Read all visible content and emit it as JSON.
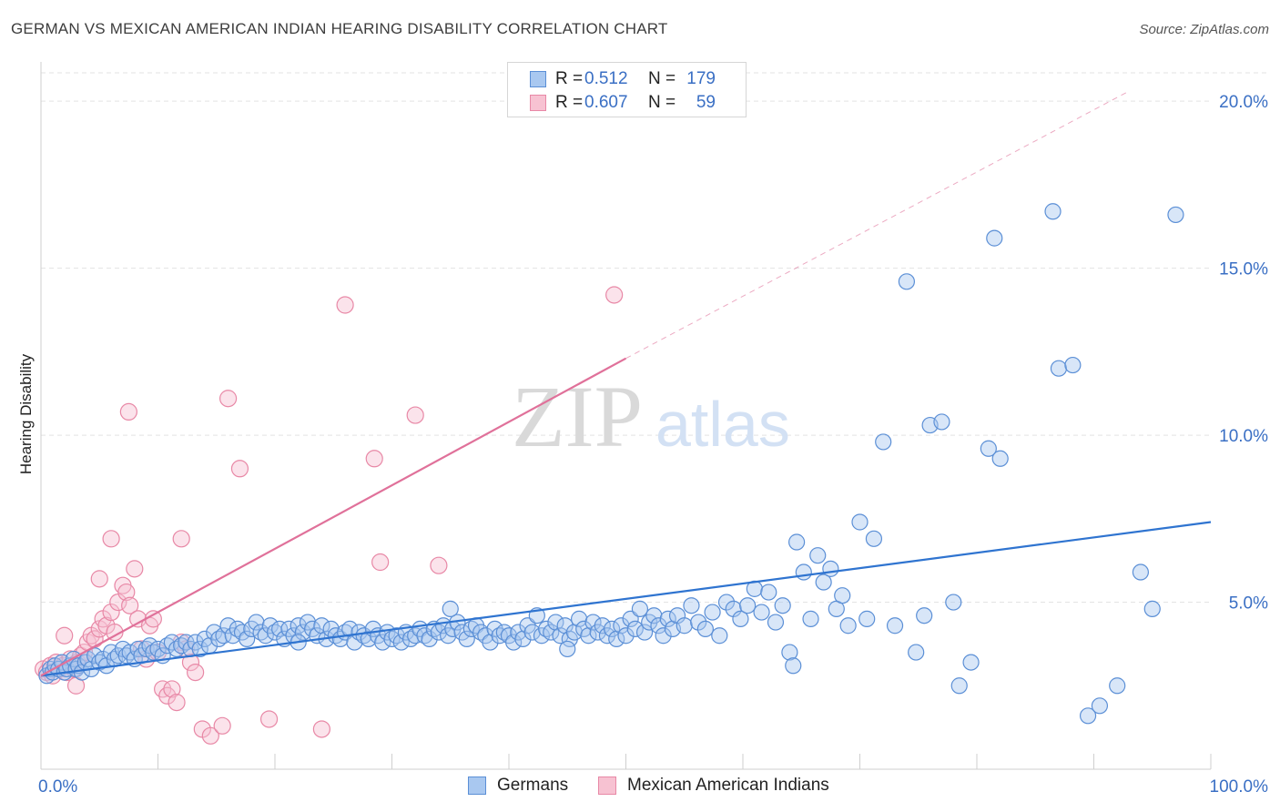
{
  "title": "GERMAN VS MEXICAN AMERICAN INDIAN HEARING DISABILITY CORRELATION CHART",
  "source": "Source: ZipAtlas.com",
  "watermark": {
    "zip": "ZIP",
    "atlas": "atlas"
  },
  "legend_top": {
    "rows": [
      {
        "r_label": "R =",
        "r_value": "0.512",
        "n_label": "N =",
        "n_value": "179",
        "color": "#a9c8f0",
        "border": "#5b8fd6"
      },
      {
        "r_label": "R =",
        "r_value": "0.607",
        "n_label": "N =",
        "n_value": "59",
        "color": "#f7c2d2",
        "border": "#e888a6"
      }
    ]
  },
  "legend_bottom": {
    "items": [
      {
        "label": "Germans",
        "color": "#a9c8f0",
        "border": "#5b8fd6"
      },
      {
        "label": "Mexican American Indians",
        "color": "#f7c2d2",
        "border": "#e888a6"
      }
    ]
  },
  "chart_data": {
    "type": "scatter",
    "title": "GERMAN VS MEXICAN AMERICAN INDIAN HEARING DISABILITY CORRELATION CHART",
    "xlabel": "",
    "ylabel": "Hearing Disability",
    "xlim": [
      0,
      100
    ],
    "ylim": [
      0,
      20
    ],
    "x_tick_labels": [
      "0.0%",
      "100.0%"
    ],
    "y_tick_labels": [
      "5.0%",
      "10.0%",
      "15.0%",
      "20.0%"
    ],
    "y_ticks": [
      5,
      10,
      15,
      20
    ],
    "x_minor_ticks": [
      0,
      10,
      20,
      30,
      40,
      50,
      60,
      70,
      80,
      90,
      100
    ],
    "grid": true,
    "legend_position": "bottom-center",
    "colors": {
      "germans": "#5b8fd6",
      "mexican": "#e888a6",
      "blue_line": "#2f74d0",
      "pink_line": "#e0719a",
      "tick_label": "#3a6fc4"
    },
    "trendlines": [
      {
        "series": "Germans",
        "x": [
          0,
          100
        ],
        "y": [
          2.8,
          7.4
        ],
        "style": "solid"
      },
      {
        "series": "Mexican American Indians",
        "x": [
          0,
          50
        ],
        "y": [
          2.8,
          12.3
        ],
        "style": "solid"
      },
      {
        "series": "Mexican American Indians",
        "x": [
          50,
          93
        ],
        "y": [
          12.3,
          20.3
        ],
        "style": "dashed"
      }
    ],
    "series": [
      {
        "name": "Germans",
        "r": 0.512,
        "n": 179,
        "points": [
          [
            0.5,
            2.8
          ],
          [
            0.8,
            3.0
          ],
          [
            1.0,
            2.9
          ],
          [
            1.2,
            3.1
          ],
          [
            1.5,
            3.0
          ],
          [
            1.8,
            3.2
          ],
          [
            2.0,
            2.9
          ],
          [
            2.2,
            3.0
          ],
          [
            2.5,
            3.1
          ],
          [
            2.8,
            3.3
          ],
          [
            3.0,
            3.0
          ],
          [
            3.2,
            3.1
          ],
          [
            3.5,
            2.9
          ],
          [
            3.8,
            3.2
          ],
          [
            4.0,
            3.3
          ],
          [
            4.3,
            3.0
          ],
          [
            4.6,
            3.4
          ],
          [
            5.0,
            3.2
          ],
          [
            5.3,
            3.3
          ],
          [
            5.6,
            3.1
          ],
          [
            6.0,
            3.5
          ],
          [
            6.3,
            3.3
          ],
          [
            6.6,
            3.4
          ],
          [
            7.0,
            3.6
          ],
          [
            7.3,
            3.4
          ],
          [
            7.6,
            3.5
          ],
          [
            8.0,
            3.3
          ],
          [
            8.3,
            3.6
          ],
          [
            8.6,
            3.4
          ],
          [
            9.0,
            3.6
          ],
          [
            9.3,
            3.7
          ],
          [
            9.6,
            3.5
          ],
          [
            10.0,
            3.6
          ],
          [
            10.4,
            3.4
          ],
          [
            10.8,
            3.7
          ],
          [
            11.2,
            3.8
          ],
          [
            11.6,
            3.6
          ],
          [
            12.0,
            3.7
          ],
          [
            12.4,
            3.8
          ],
          [
            12.8,
            3.6
          ],
          [
            13.2,
            3.8
          ],
          [
            13.6,
            3.6
          ],
          [
            14.0,
            3.9
          ],
          [
            14.4,
            3.7
          ],
          [
            14.8,
            4.1
          ],
          [
            15.2,
            3.9
          ],
          [
            15.6,
            4.0
          ],
          [
            16.0,
            4.3
          ],
          [
            16.4,
            4.0
          ],
          [
            16.8,
            4.2
          ],
          [
            17.2,
            4.1
          ],
          [
            17.6,
            3.9
          ],
          [
            18.0,
            4.2
          ],
          [
            18.4,
            4.4
          ],
          [
            18.8,
            4.1
          ],
          [
            19.2,
            4.0
          ],
          [
            19.6,
            4.3
          ],
          [
            20.0,
            4.1
          ],
          [
            20.4,
            4.2
          ],
          [
            20.8,
            3.9
          ],
          [
            21.2,
            4.2
          ],
          [
            21.6,
            4.0
          ],
          [
            22.0,
            4.3
          ],
          [
            22.4,
            4.1
          ],
          [
            22.8,
            4.4
          ],
          [
            23.2,
            4.2
          ],
          [
            23.6,
            4.0
          ],
          [
            24.0,
            4.3
          ],
          [
            24.4,
            3.9
          ],
          [
            24.8,
            4.2
          ],
          [
            25.2,
            4.0
          ],
          [
            25.6,
            3.9
          ],
          [
            26.0,
            4.1
          ],
          [
            26.4,
            4.2
          ],
          [
            26.8,
            3.8
          ],
          [
            27.2,
            4.1
          ],
          [
            27.6,
            4.0
          ],
          [
            28.0,
            3.9
          ],
          [
            28.4,
            4.2
          ],
          [
            28.8,
            4.0
          ],
          [
            29.2,
            3.8
          ],
          [
            29.6,
            4.1
          ],
          [
            30.0,
            3.9
          ],
          [
            30.4,
            4.0
          ],
          [
            30.8,
            3.8
          ],
          [
            31.2,
            4.1
          ],
          [
            31.6,
            3.9
          ],
          [
            32.0,
            4.0
          ],
          [
            32.4,
            4.2
          ],
          [
            32.8,
            4.0
          ],
          [
            33.2,
            3.9
          ],
          [
            33.6,
            4.2
          ],
          [
            34.0,
            4.1
          ],
          [
            34.4,
            4.3
          ],
          [
            34.8,
            4.0
          ],
          [
            35.2,
            4.2
          ],
          [
            35.6,
            4.4
          ],
          [
            36.0,
            4.1
          ],
          [
            36.4,
            3.9
          ],
          [
            36.8,
            4.2
          ],
          [
            37.2,
            4.3
          ],
          [
            37.6,
            4.1
          ],
          [
            38.0,
            4.0
          ],
          [
            38.4,
            3.8
          ],
          [
            38.8,
            4.2
          ],
          [
            39.2,
            4.0
          ],
          [
            39.6,
            4.1
          ],
          [
            40.0,
            4.0
          ],
          [
            40.4,
            3.8
          ],
          [
            40.8,
            4.1
          ],
          [
            41.2,
            3.9
          ],
          [
            41.6,
            4.3
          ],
          [
            42.0,
            4.1
          ],
          [
            42.4,
            4.6
          ],
          [
            42.8,
            4.0
          ],
          [
            43.2,
            4.2
          ],
          [
            43.6,
            4.1
          ],
          [
            44.0,
            4.4
          ],
          [
            44.4,
            4.0
          ],
          [
            44.8,
            4.3
          ],
          [
            45.2,
            3.9
          ],
          [
            45.6,
            4.1
          ],
          [
            46.0,
            4.5
          ],
          [
            46.4,
            4.2
          ],
          [
            46.8,
            4.0
          ],
          [
            47.2,
            4.4
          ],
          [
            47.6,
            4.1
          ],
          [
            48.0,
            4.3
          ],
          [
            48.4,
            4.0
          ],
          [
            48.8,
            4.2
          ],
          [
            49.2,
            3.9
          ],
          [
            49.6,
            4.3
          ],
          [
            50.0,
            4.0
          ],
          [
            50.4,
            4.5
          ],
          [
            50.8,
            4.2
          ],
          [
            51.2,
            4.8
          ],
          [
            51.6,
            4.1
          ],
          [
            52.0,
            4.4
          ],
          [
            52.4,
            4.6
          ],
          [
            52.8,
            4.3
          ],
          [
            53.2,
            4.0
          ],
          [
            53.6,
            4.5
          ],
          [
            54.0,
            4.2
          ],
          [
            54.4,
            4.6
          ],
          [
            55.0,
            4.3
          ],
          [
            55.6,
            4.9
          ],
          [
            56.2,
            4.4
          ],
          [
            56.8,
            4.2
          ],
          [
            57.4,
            4.7
          ],
          [
            58.0,
            4.0
          ],
          [
            58.6,
            5.0
          ],
          [
            59.2,
            4.8
          ],
          [
            59.8,
            4.5
          ],
          [
            60.4,
            4.9
          ],
          [
            61.0,
            5.4
          ],
          [
            61.6,
            4.7
          ],
          [
            62.2,
            5.3
          ],
          [
            62.8,
            4.4
          ],
          [
            63.4,
            4.9
          ],
          [
            64.0,
            3.5
          ],
          [
            64.6,
            6.8
          ],
          [
            65.2,
            5.9
          ],
          [
            65.8,
            4.5
          ],
          [
            66.4,
            6.4
          ],
          [
            66.9,
            5.6
          ],
          [
            67.5,
            6.0
          ],
          [
            68.0,
            4.8
          ],
          [
            68.5,
            5.2
          ],
          [
            69.0,
            4.3
          ],
          [
            70.0,
            7.4
          ],
          [
            70.6,
            4.5
          ],
          [
            71.2,
            6.9
          ],
          [
            72.0,
            9.8
          ],
          [
            73.0,
            4.3
          ],
          [
            74.0,
            14.6
          ],
          [
            74.8,
            3.5
          ],
          [
            75.5,
            4.6
          ],
          [
            76.0,
            10.3
          ],
          [
            77.0,
            10.4
          ],
          [
            78.0,
            5.0
          ],
          [
            78.5,
            2.5
          ],
          [
            79.5,
            3.2
          ],
          [
            81.0,
            9.6
          ],
          [
            82.0,
            9.3
          ],
          [
            86.5,
            16.7
          ],
          [
            87.0,
            12.0
          ],
          [
            88.2,
            12.1
          ],
          [
            89.5,
            1.6
          ],
          [
            90.5,
            1.9
          ],
          [
            92.0,
            2.5
          ],
          [
            94.0,
            5.9
          ],
          [
            95.0,
            4.8
          ],
          [
            97.0,
            16.6
          ],
          [
            81.5,
            15.9
          ],
          [
            64.3,
            3.1
          ],
          [
            45.0,
            3.6
          ],
          [
            35.0,
            4.8
          ],
          [
            22.0,
            3.8
          ]
        ]
      },
      {
        "name": "Mexican American Indians",
        "r": 0.607,
        "n": 59,
        "points": [
          [
            0.2,
            3.0
          ],
          [
            0.5,
            2.9
          ],
          [
            0.8,
            3.1
          ],
          [
            1.0,
            2.8
          ],
          [
            1.3,
            3.2
          ],
          [
            1.6,
            3.0
          ],
          [
            1.9,
            3.1
          ],
          [
            2.2,
            2.9
          ],
          [
            2.5,
            3.3
          ],
          [
            2.8,
            3.0
          ],
          [
            3.1,
            3.2
          ],
          [
            3.4,
            3.4
          ],
          [
            3.7,
            3.5
          ],
          [
            4.0,
            3.8
          ],
          [
            4.3,
            4.0
          ],
          [
            4.6,
            3.9
          ],
          [
            5.0,
            4.2
          ],
          [
            5.3,
            4.5
          ],
          [
            5.6,
            4.3
          ],
          [
            6.0,
            4.7
          ],
          [
            6.3,
            4.1
          ],
          [
            6.6,
            5.0
          ],
          [
            7.0,
            5.5
          ],
          [
            7.3,
            5.3
          ],
          [
            7.6,
            4.9
          ],
          [
            8.0,
            6.0
          ],
          [
            8.3,
            4.5
          ],
          [
            8.6,
            3.6
          ],
          [
            9.0,
            3.3
          ],
          [
            9.3,
            4.3
          ],
          [
            9.6,
            4.5
          ],
          [
            10.0,
            3.5
          ],
          [
            10.4,
            2.4
          ],
          [
            10.8,
            2.2
          ],
          [
            11.2,
            2.4
          ],
          [
            11.6,
            2.0
          ],
          [
            12.0,
            3.8
          ],
          [
            12.4,
            3.6
          ],
          [
            12.8,
            3.2
          ],
          [
            13.2,
            2.9
          ],
          [
            13.8,
            1.2
          ],
          [
            14.5,
            1.0
          ],
          [
            16.0,
            11.1
          ],
          [
            17.0,
            9.0
          ],
          [
            19.5,
            1.5
          ],
          [
            24.0,
            1.2
          ],
          [
            26.0,
            13.9
          ],
          [
            28.5,
            9.3
          ],
          [
            29.0,
            6.2
          ],
          [
            32.0,
            10.6
          ],
          [
            34.0,
            6.1
          ],
          [
            49.0,
            14.2
          ],
          [
            7.5,
            10.7
          ],
          [
            12.0,
            6.9
          ],
          [
            6.0,
            6.9
          ],
          [
            5.0,
            5.7
          ],
          [
            3.0,
            2.5
          ],
          [
            15.5,
            1.3
          ],
          [
            2.0,
            4.0
          ]
        ]
      }
    ]
  }
}
